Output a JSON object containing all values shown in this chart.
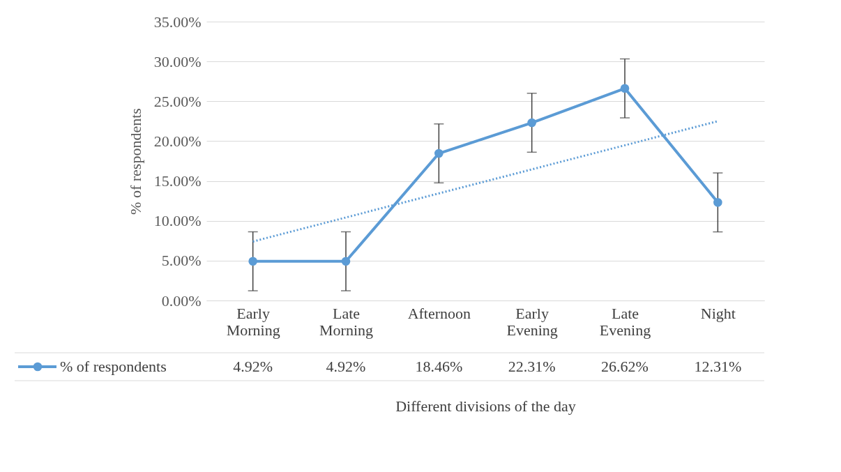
{
  "chart_data": {
    "type": "line",
    "xlabel": "Different divisions of the day",
    "ylabel": "% of respondents",
    "categories": [
      "Early Morning",
      "Late Morning",
      "Afternoon",
      "Early Evening",
      "Late Evening",
      "Night"
    ],
    "series": [
      {
        "name": "% of respondents",
        "color": "#5b9bd5",
        "marker": "circle",
        "line_style": "solid",
        "values": [
          4.92,
          4.92,
          18.46,
          22.31,
          26.62,
          12.31
        ],
        "errors": [
          3.7,
          3.7,
          3.7,
          3.7,
          3.7,
          3.7
        ],
        "value_labels": [
          "4.92%",
          "4.92%",
          "18.46%",
          "22.31%",
          "26.62%",
          "12.31%"
        ]
      },
      {
        "type": "line",
        "color": "#5b9bd5",
        "marker": "none",
        "line_style": "dotted",
        "x": [
          "Early Morning",
          "Night"
        ],
        "values": [
          7.4,
          22.5
        ]
      }
    ],
    "ylim": [
      0,
      35
    ],
    "yticks": [
      {
        "value": 0,
        "label": "0.00%"
      },
      {
        "value": 5,
        "label": "5.00%"
      },
      {
        "value": 10,
        "label": "10.00%"
      },
      {
        "value": 15,
        "label": "15.00%"
      },
      {
        "value": 20,
        "label": "20.00%"
      },
      {
        "value": 25,
        "label": "25.00%"
      },
      {
        "value": 30,
        "label": "30.00%"
      },
      {
        "value": 35,
        "label": "35.00%"
      }
    ],
    "grid": "y",
    "legend": "bottom"
  }
}
